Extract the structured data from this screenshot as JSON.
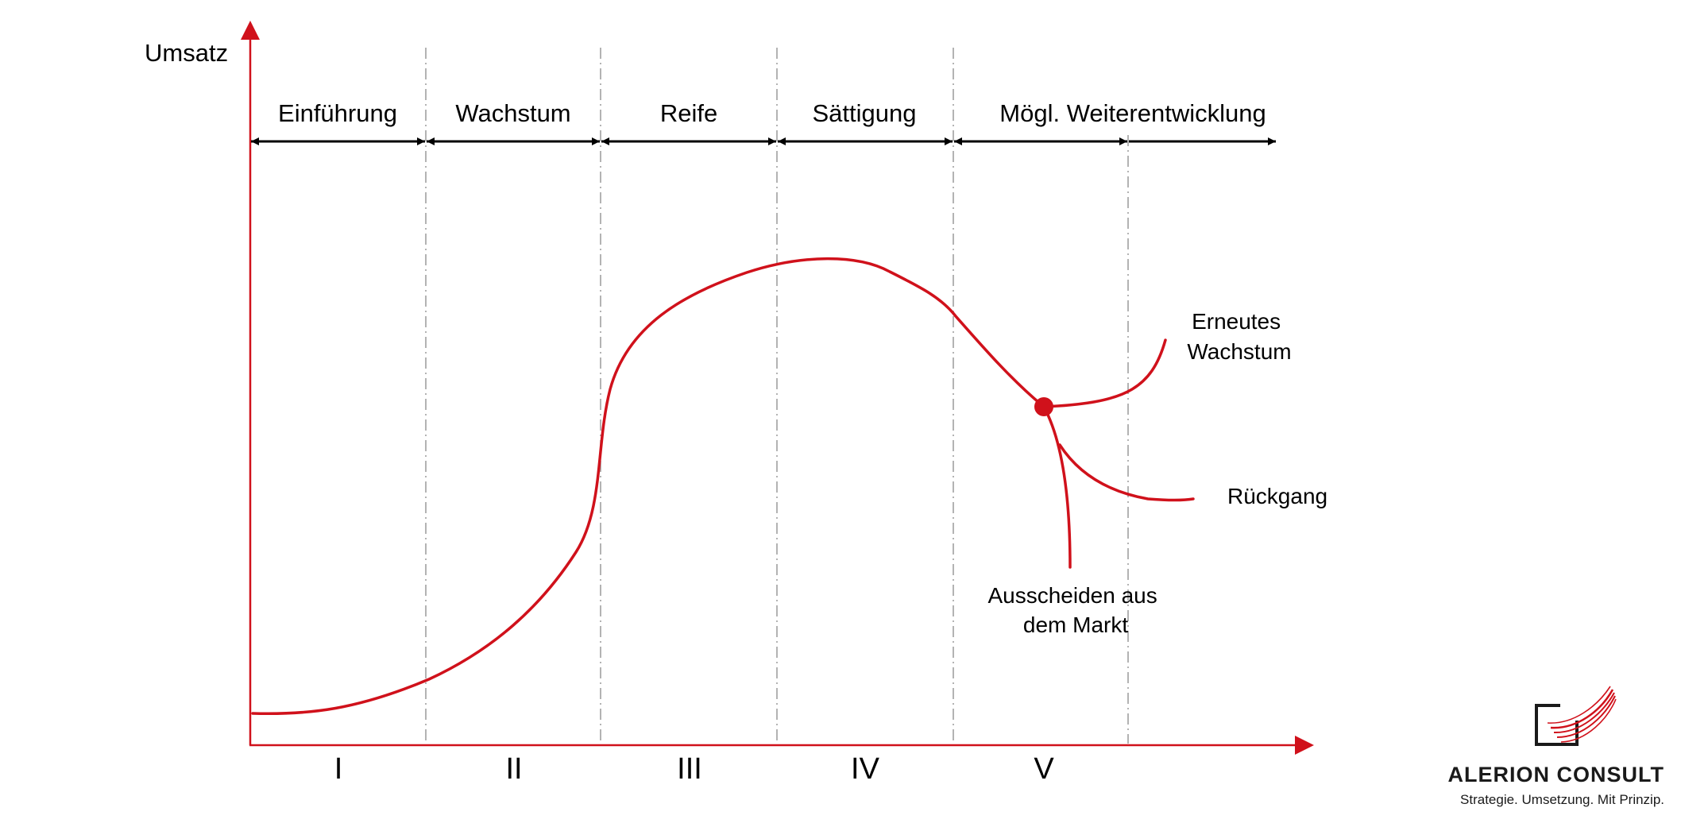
{
  "diagram": {
    "y_axis_label": "Umsatz",
    "phases": [
      "Einführung",
      "Wachstum",
      "Reife",
      "Sättigung",
      "Mögl. Weiterentwicklung"
    ],
    "phase_numerals": [
      "I",
      "II",
      "III",
      "IV",
      "V"
    ],
    "outcomes": {
      "growth": [
        "Erneutes",
        "Wachstum"
      ],
      "decline": "Rückgang",
      "exit": [
        "Ausscheiden aus",
        "dem Markt"
      ]
    }
  },
  "colors": {
    "accent": "#d0111b",
    "arrow": "#000000",
    "divider": "#9a9a9a"
  },
  "brand": {
    "name": "ALERION CONSULT",
    "tagline": "Strategie. Umsetzung. Mit Prinzip.",
    "logo_icon": "alerion-logo-icon"
  }
}
